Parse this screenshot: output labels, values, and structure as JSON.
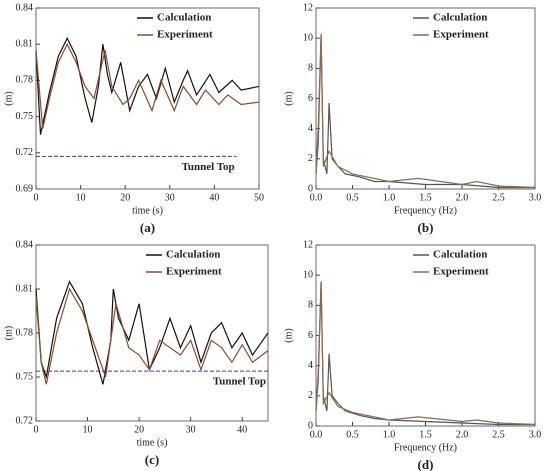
{
  "chart_data": [
    {
      "type": "line",
      "caption": "(a)",
      "xlabel": "time (s)",
      "ylabel": "(m)",
      "xlim": [
        0,
        50
      ],
      "ylim": [
        0.69,
        0.84
      ],
      "xticks": [
        0,
        10,
        20,
        30,
        40,
        50
      ],
      "yticks": [
        0.69,
        0.72,
        0.75,
        0.78,
        0.81,
        0.84
      ],
      "legend": "upper right",
      "reference_line": {
        "label": "Tunnel Top",
        "value": 0.717,
        "xrange": [
          0,
          45
        ],
        "color": "#3a3a9a"
      },
      "series": [
        {
          "name": "Calculation",
          "color": "#111111",
          "x": [
            0,
            1,
            3,
            5,
            7,
            9,
            11,
            12.5,
            14,
            15,
            16,
            17,
            19,
            21,
            23,
            25,
            27,
            29,
            31,
            33,
            34,
            36,
            39,
            41,
            44,
            46,
            50
          ],
          "values": [
            0.805,
            0.735,
            0.77,
            0.8,
            0.815,
            0.8,
            0.765,
            0.745,
            0.775,
            0.81,
            0.785,
            0.77,
            0.795,
            0.755,
            0.775,
            0.785,
            0.765,
            0.79,
            0.762,
            0.78,
            0.788,
            0.768,
            0.785,
            0.77,
            0.78,
            0.772,
            0.775
          ]
        },
        {
          "name": "Experiment",
          "color": "#8b4a2b",
          "x": [
            0,
            1.5,
            3,
            5,
            7,
            9,
            11,
            13,
            15.5,
            17,
            19.5,
            21,
            23,
            26,
            28,
            31,
            33,
            36,
            38,
            41,
            43,
            46,
            50
          ],
          "values": [
            0.805,
            0.74,
            0.765,
            0.795,
            0.81,
            0.795,
            0.775,
            0.765,
            0.805,
            0.775,
            0.76,
            0.765,
            0.78,
            0.755,
            0.78,
            0.755,
            0.775,
            0.76,
            0.772,
            0.76,
            0.768,
            0.76,
            0.762
          ]
        }
      ]
    },
    {
      "type": "line",
      "caption": "(b)",
      "xlabel": "Frequency (Hz)",
      "ylabel": "(m)",
      "xlim": [
        0,
        3
      ],
      "ylim": [
        0,
        12
      ],
      "xticks": [
        {
          "value": 0,
          "label": "0.0"
        },
        0.5,
        {
          "value": 1,
          "label": "1.0"
        },
        1.5,
        {
          "value": 2,
          "label": "2.0"
        },
        2.5,
        {
          "value": 3,
          "label": "3.0"
        }
      ],
      "yticks": [
        0,
        2,
        4,
        6,
        8,
        10,
        12
      ],
      "legend": "upper right",
      "series": [
        {
          "name": "Calculation",
          "color": "#555555",
          "x": [
            0,
            0.03,
            0.07,
            0.1,
            0.15,
            0.18,
            0.22,
            0.3,
            0.4,
            0.6,
            0.8,
            1.0,
            1.5,
            2.0,
            2.5,
            3.0
          ],
          "values": [
            1,
            3,
            10.2,
            2,
            1,
            5.7,
            2,
            1.5,
            1,
            0.8,
            0.5,
            0.5,
            0.3,
            0.3,
            0.1,
            0.1
          ]
        },
        {
          "name": "Experiment",
          "color": "#8b6a50",
          "x": [
            0,
            0.03,
            0.07,
            0.1,
            0.18,
            0.3,
            0.5,
            1.0,
            1.4,
            2.0,
            2.2,
            2.5,
            3.0
          ],
          "values": [
            1.2,
            4,
            10.3,
            1.5,
            2.5,
            1.5,
            1,
            0.5,
            0.7,
            0.3,
            0.5,
            0.2,
            0.1
          ]
        }
      ]
    },
    {
      "type": "line",
      "caption": "(c)",
      "xlabel": "time (s)",
      "ylabel": "(m)",
      "xlim": [
        0,
        45
      ],
      "ylim": [
        0.72,
        0.84
      ],
      "xticks": [
        0,
        10,
        20,
        30,
        40
      ],
      "yticks": [
        0.72,
        0.75,
        0.78,
        0.81,
        0.84
      ],
      "legend": "upper right",
      "reference_line": {
        "label": "Tunnel Top",
        "value": 0.754,
        "xrange": [
          0,
          45
        ],
        "color": "#3a3a9a"
      },
      "series": [
        {
          "name": "Calculation",
          "color": "#111111",
          "x": [
            0,
            1,
            2,
            4,
            6.5,
            9,
            11,
            13,
            14.5,
            15,
            16,
            18,
            20,
            22,
            24,
            26,
            28,
            30,
            32,
            34,
            36,
            38,
            40,
            42,
            44,
            45
          ],
          "values": [
            0.81,
            0.76,
            0.75,
            0.79,
            0.815,
            0.8,
            0.77,
            0.745,
            0.775,
            0.81,
            0.79,
            0.775,
            0.8,
            0.755,
            0.77,
            0.79,
            0.77,
            0.785,
            0.76,
            0.78,
            0.787,
            0.77,
            0.78,
            0.765,
            0.775,
            0.78
          ]
        },
        {
          "name": "Experiment",
          "color": "#8b4a2b",
          "x": [
            0,
            1,
            2,
            4,
            6.5,
            9,
            11,
            13.5,
            15.5,
            18,
            20,
            22,
            24,
            26,
            28,
            30,
            32,
            34,
            36,
            38,
            40,
            42,
            45
          ],
          "values": [
            0.805,
            0.76,
            0.745,
            0.78,
            0.81,
            0.795,
            0.775,
            0.75,
            0.8,
            0.77,
            0.765,
            0.755,
            0.775,
            0.77,
            0.765,
            0.775,
            0.755,
            0.775,
            0.77,
            0.76,
            0.772,
            0.76,
            0.768
          ]
        }
      ]
    },
    {
      "type": "line",
      "caption": "(d)",
      "xlabel": "Frequency (Hz)",
      "ylabel": "(m)",
      "xlim": [
        0,
        3
      ],
      "ylim": [
        0,
        12
      ],
      "xticks": [
        {
          "value": 0,
          "label": "0.0"
        },
        0.5,
        {
          "value": 1,
          "label": "1.0"
        },
        1.5,
        {
          "value": 2,
          "label": "2.0"
        },
        2.5,
        {
          "value": 3,
          "label": "3.0"
        }
      ],
      "yticks": [
        0,
        2,
        4,
        6,
        8,
        10,
        12
      ],
      "legend": "upper right",
      "series": [
        {
          "name": "Calculation",
          "color": "#555555",
          "x": [
            0,
            0.03,
            0.07,
            0.1,
            0.15,
            0.18,
            0.22,
            0.3,
            0.4,
            0.6,
            0.8,
            1.0,
            1.5,
            2.0,
            2.5,
            3.0
          ],
          "values": [
            1,
            3,
            9.5,
            2,
            1,
            4.8,
            2,
            1.5,
            1,
            0.7,
            0.5,
            0.4,
            0.3,
            0.2,
            0.1,
            0.1
          ]
        },
        {
          "name": "Experiment",
          "color": "#8b6a50",
          "x": [
            0,
            0.03,
            0.07,
            0.1,
            0.18,
            0.3,
            0.5,
            1.0,
            1.4,
            2.0,
            2.2,
            2.5,
            3.0
          ],
          "values": [
            1.2,
            3.5,
            9.6,
            1.5,
            2.2,
            1.3,
            0.9,
            0.4,
            0.6,
            0.3,
            0.4,
            0.2,
            0.1
          ]
        }
      ]
    }
  ]
}
